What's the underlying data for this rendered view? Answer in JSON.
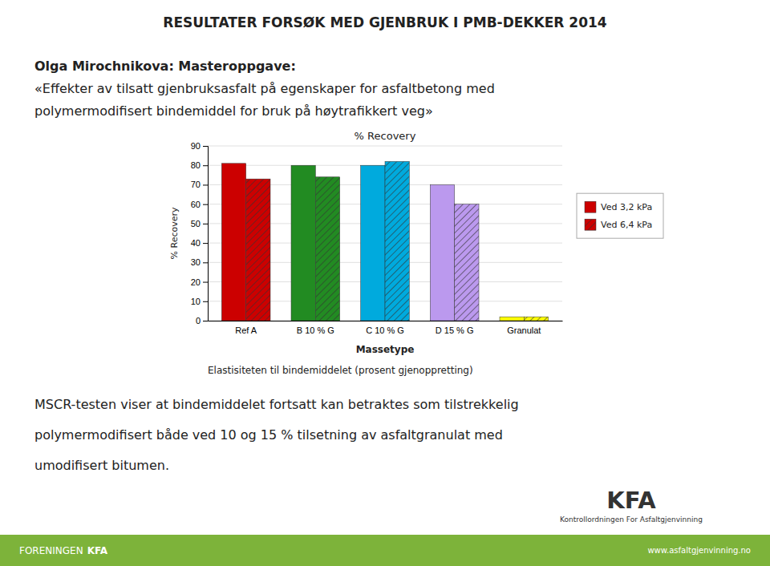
{
  "chart_data": {
    "type": "bar",
    "title": "RESULTATER FORSØK MED GJENBRUK I PMB-DEKKER 2014",
    "subtitle": [
      "Olga Mirochnikova: Masteroppgave:",
      "«Effekter av tilsatt gjenbruksasfalt på egenskaper for asfaltbetong med",
      "polymermodifisert bindemiddel for bruk på høytrafikkert veg»"
    ],
    "chart_title": "% Recovery",
    "x_label": "Massetype",
    "y_label": "% Recovery",
    "categories": [
      "Ref A",
      "B 10 % G",
      "C 10 % G",
      "D 15 % G",
      "Granulat"
    ],
    "series": [
      {
        "name": "Ved 3,2 kPa",
        "color": "#CC0000",
        "colors": [
          "#CC0000",
          "#228B22",
          "#00AADD",
          "#BB99EE",
          "#FFFF00"
        ],
        "values": [
          81,
          80,
          80,
          70,
          2
        ]
      },
      {
        "name": "Ved 6,4 kPa",
        "color": "#CC0000",
        "colors": [
          "#CC0000",
          "#228B22",
          "#00AADD",
          "#BB99EE",
          "#FFFF00"
        ],
        "values": [
          73,
          74,
          82,
          60,
          2
        ]
      }
    ],
    "ylim": [
      0,
      90
    ],
    "yticks": [
      0,
      10,
      20,
      30,
      40,
      50,
      60,
      70,
      80,
      90
    ],
    "grid": true,
    "legend": "right",
    "caption": "Elastisiteten til bindemiddelet (prosent gjenoppretting)",
    "body_text": [
      "MSCR-testen viser at bindemiddelet fortsatt kan betraktes som tilstrekkelig",
      "polymermodifisert både ved 10 og 15 % tilsetning av asfaltgranulat med",
      "umodifisert bitumen."
    ],
    "annotations": [
      "KFA",
      "Kontrollordningen For Asfaltgjenvinning"
    ],
    "footer": {
      "texts": [
        "FORENINGEN",
        "KFA",
        "www.asfaltgjenvinning.no"
      ],
      "color": "#7DB33A"
    }
  }
}
